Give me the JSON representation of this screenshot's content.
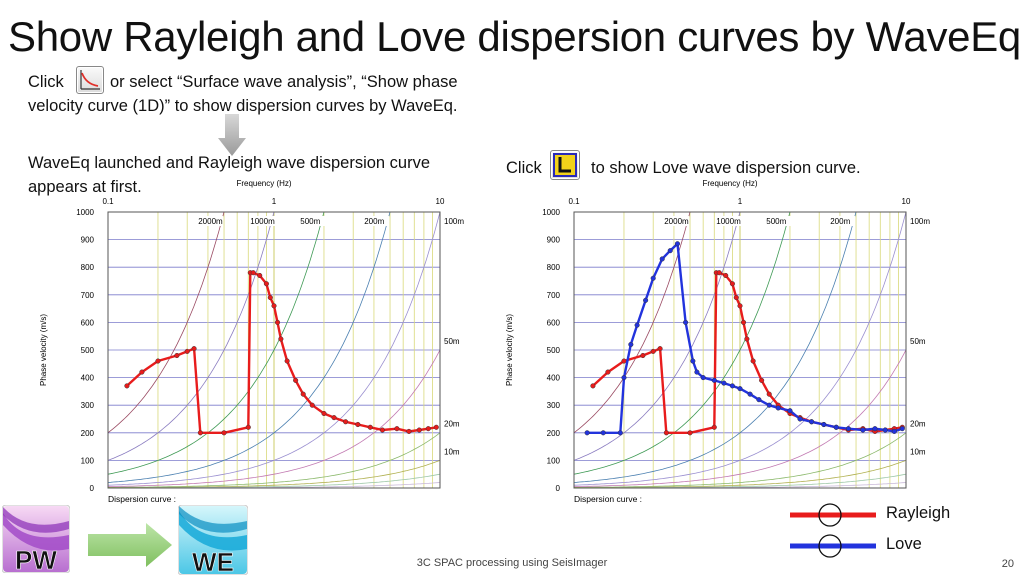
{
  "slide": {
    "title": "Show Rayleigh and Love dispersion curves by WaveEq",
    "instr_click": "Click",
    "instr_rest_1": "or select “Surface wave analysis”, “Show phase",
    "instr_rest_2": "velocity curve (1D)” to show dispersion curves by WaveEq.",
    "left_caption_1": "WaveEq launched and Rayleigh wave dispersion curve",
    "left_caption_2": "appears at first.",
    "right_click": "Click",
    "right_caption": "to show Love wave dispersion curve.",
    "footer": "3C SPAC processing using SeisImager",
    "page_number": "20"
  },
  "icons": {
    "dispersion_button": "dispersion-curve-icon",
    "love_button": "love-wave-icon",
    "arrow": "down-arrow-icon",
    "pw_logo": "pickwin-logo",
    "we_logo": "waveeq-logo",
    "transition_arrow": "right-arrow-icon"
  },
  "logos": {
    "pw": "PW",
    "we": "WE"
  },
  "legend": [
    {
      "label": "Rayleigh",
      "color": "#e81c1c"
    },
    {
      "label": "Love",
      "color": "#2233dd"
    }
  ],
  "plot": {
    "xlabel": "Frequency (Hz)",
    "ylabel": "Phase velocity (m/s)",
    "x_ticks": [
      "0.1",
      "1",
      "10"
    ],
    "y_ticks": [
      "0",
      "100",
      "200",
      "300",
      "400",
      "500",
      "600",
      "700",
      "800",
      "900",
      "1000"
    ],
    "wavelength_labels_top": [
      "2000m",
      "1000m",
      "500m",
      "200m",
      "100m"
    ],
    "wavelength_labels_right": [
      "50m",
      "20m",
      "10m"
    ],
    "dispersion_label": "Dispersion curve :"
  },
  "chart_data": [
    {
      "type": "line",
      "xlabel": "Frequency (Hz)",
      "ylabel": "Phase velocity (m/s)",
      "xscale": "log",
      "xlim": [
        0.1,
        10
      ],
      "ylim": [
        0,
        1000
      ],
      "grid": true,
      "series": [
        {
          "name": "Rayleigh",
          "color": "#e81c1c",
          "x": [
            0.13,
            0.16,
            0.2,
            0.26,
            0.3,
            0.33,
            0.36,
            0.5,
            0.7,
            0.72,
            0.75,
            0.82,
            0.9,
            0.95,
            1.0,
            1.05,
            1.1,
            1.2,
            1.35,
            1.5,
            1.7,
            2.0,
            2.3,
            2.7,
            3.2,
            3.8,
            4.5,
            5.5,
            6.5,
            7.5,
            8.5,
            9.5
          ],
          "y": [
            370,
            420,
            460,
            480,
            495,
            505,
            200,
            200,
            220,
            780,
            780,
            770,
            740,
            690,
            660,
            600,
            540,
            460,
            390,
            340,
            300,
            270,
            255,
            240,
            230,
            220,
            210,
            215,
            205,
            210,
            215,
            220
          ]
        }
      ]
    },
    {
      "type": "line",
      "xlabel": "Frequency (Hz)",
      "ylabel": "Phase velocity (m/s)",
      "xscale": "log",
      "xlim": [
        0.1,
        10
      ],
      "ylim": [
        0,
        1000
      ],
      "grid": true,
      "series": [
        {
          "name": "Rayleigh",
          "color": "#e81c1c",
          "x": [
            0.13,
            0.16,
            0.2,
            0.26,
            0.3,
            0.33,
            0.36,
            0.5,
            0.7,
            0.72,
            0.75,
            0.82,
            0.9,
            0.95,
            1.0,
            1.05,
            1.1,
            1.2,
            1.35,
            1.5,
            1.7,
            2.0,
            2.3,
            2.7,
            3.2,
            3.8,
            4.5,
            5.5,
            6.5,
            7.5,
            8.5,
            9.5
          ],
          "y": [
            370,
            420,
            460,
            480,
            495,
            505,
            200,
            200,
            220,
            780,
            780,
            770,
            740,
            690,
            660,
            600,
            540,
            460,
            390,
            340,
            300,
            270,
            255,
            240,
            230,
            220,
            210,
            215,
            205,
            210,
            215,
            220
          ]
        },
        {
          "name": "Love",
          "color": "#2233dd",
          "x": [
            0.12,
            0.15,
            0.19,
            0.2,
            0.22,
            0.24,
            0.27,
            0.3,
            0.34,
            0.38,
            0.42,
            0.47,
            0.52,
            0.55,
            0.6,
            0.7,
            0.8,
            0.9,
            1.0,
            1.15,
            1.3,
            1.5,
            1.7,
            2.0,
            2.3,
            2.7,
            3.2,
            3.8,
            4.5,
            5.5,
            6.5,
            7.5,
            8.5,
            9.5
          ],
          "y": [
            200,
            200,
            200,
            400,
            520,
            590,
            680,
            760,
            830,
            860,
            885,
            600,
            460,
            420,
            400,
            390,
            380,
            370,
            360,
            340,
            320,
            300,
            290,
            280,
            250,
            240,
            230,
            220,
            215,
            210,
            215,
            210,
            205,
            215
          ]
        }
      ]
    }
  ]
}
